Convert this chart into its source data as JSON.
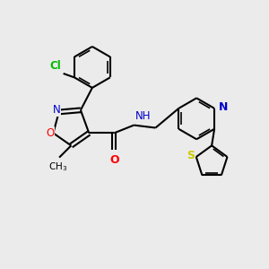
{
  "background_color": "#ebebeb",
  "bond_color": "#000000",
  "atom_colors": {
    "N": "#0000cc",
    "O": "#ff0000",
    "S": "#cccc00",
    "Cl": "#00bb00",
    "C": "#000000"
  },
  "figsize": [
    3.0,
    3.0
  ],
  "dpi": 100
}
